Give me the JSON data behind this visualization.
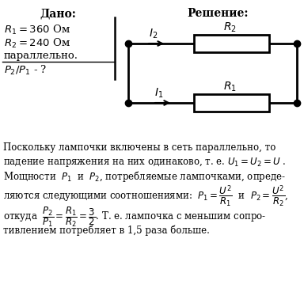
{
  "title_dado": "Дано:",
  "title_reshenie": "Решение:",
  "dado_r1": "R₁ = 360 Ом",
  "dado_r2": "R₂ = 240 Ом",
  "dado_par": "параллельно.",
  "dado_q": "P₂/P₁ - ?",
  "bg_color": "#ffffff",
  "text_color": "#000000",
  "sol_line1": "Поскольку лампочки включены в сеть параллельно, то",
  "sol_line2": "падение напряжения на них одинаково, т. е. ",
  "sol_line2b": "U₁ = U₂ = U .",
  "sol_line3": "Мощности  P₁  и  P₂, потребляемые лампочками, опреде-",
  "sol_line4": "ляются следующими соотношениями: ",
  "sol_line6": "тивлением потребляет в 1,5 раза больше.",
  "sol_otkuda": "откуда  "
}
